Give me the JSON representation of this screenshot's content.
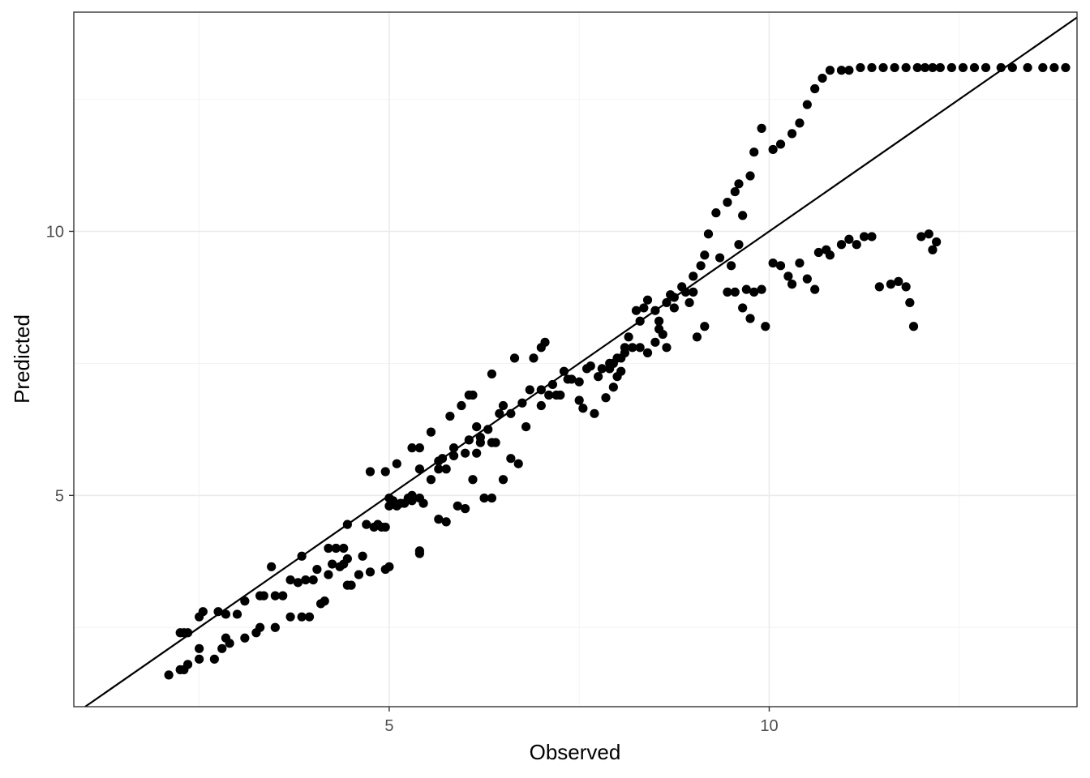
{
  "chart_data": {
    "type": "scatter",
    "title": "",
    "xlabel": "Observed",
    "ylabel": "Predicted",
    "xlim": [
      0.85,
      14.05
    ],
    "ylim": [
      1.0,
      14.15
    ],
    "x_ticks": [
      5,
      10
    ],
    "y_ticks": [
      5,
      10
    ],
    "grid": true,
    "reference_line": {
      "type": "identity",
      "slope": 1,
      "intercept": 0
    },
    "point_color": "#000000",
    "series": [
      {
        "points": [
          [
            2.1,
            1.6
          ],
          [
            2.25,
            1.7
          ],
          [
            2.3,
            1.7
          ],
          [
            2.35,
            1.8
          ],
          [
            2.5,
            1.9
          ],
          [
            2.5,
            2.1
          ],
          [
            2.7,
            1.9
          ],
          [
            2.8,
            2.1
          ],
          [
            2.85,
            2.3
          ],
          [
            2.9,
            2.2
          ],
          [
            3.1,
            2.3
          ],
          [
            3.25,
            2.4
          ],
          [
            3.3,
            2.5
          ],
          [
            3.5,
            2.5
          ],
          [
            3.7,
            2.7
          ],
          [
            3.85,
            2.7
          ],
          [
            3.95,
            2.7
          ],
          [
            4.1,
            2.95
          ],
          [
            4.15,
            3.0
          ],
          [
            4.45,
            3.3
          ],
          [
            4.5,
            3.3
          ],
          [
            4.6,
            3.5
          ],
          [
            4.75,
            3.55
          ],
          [
            4.95,
            3.6
          ],
          [
            5.0,
            3.65
          ],
          [
            5.4,
            3.9
          ],
          [
            5.4,
            3.95
          ],
          [
            2.25,
            2.4
          ],
          [
            2.3,
            2.4
          ],
          [
            2.35,
            2.4
          ],
          [
            2.5,
            2.7
          ],
          [
            2.55,
            2.8
          ],
          [
            2.75,
            2.8
          ],
          [
            2.85,
            2.75
          ],
          [
            3.0,
            2.75
          ],
          [
            3.1,
            3.0
          ],
          [
            3.3,
            3.1
          ],
          [
            3.35,
            3.1
          ],
          [
            3.5,
            3.1
          ],
          [
            3.6,
            3.1
          ],
          [
            3.7,
            3.4
          ],
          [
            3.8,
            3.35
          ],
          [
            3.9,
            3.4
          ],
          [
            4.0,
            3.4
          ],
          [
            4.05,
            3.6
          ],
          [
            4.2,
            3.5
          ],
          [
            4.25,
            3.7
          ],
          [
            4.35,
            3.65
          ],
          [
            4.4,
            3.7
          ],
          [
            4.45,
            3.8
          ],
          [
            4.65,
            3.85
          ],
          [
            4.8,
            4.4
          ],
          [
            4.9,
            4.4
          ],
          [
            5.0,
            4.8
          ],
          [
            5.1,
            4.8
          ],
          [
            5.2,
            4.85
          ],
          [
            5.3,
            4.9
          ],
          [
            5.45,
            4.85
          ],
          [
            5.65,
            4.55
          ],
          [
            5.75,
            4.5
          ],
          [
            5.9,
            4.8
          ],
          [
            6.0,
            4.75
          ],
          [
            6.25,
            4.95
          ],
          [
            6.35,
            4.95
          ],
          [
            3.45,
            3.65
          ],
          [
            3.85,
            3.85
          ],
          [
            4.2,
            4.0
          ],
          [
            4.3,
            4.0
          ],
          [
            4.4,
            4.0
          ],
          [
            4.45,
            4.45
          ],
          [
            4.7,
            4.45
          ],
          [
            4.85,
            4.45
          ],
          [
            4.95,
            4.4
          ],
          [
            5.0,
            4.95
          ],
          [
            5.05,
            4.9
          ],
          [
            5.15,
            4.85
          ],
          [
            5.25,
            4.95
          ],
          [
            5.3,
            5.0
          ],
          [
            5.4,
            4.95
          ],
          [
            5.4,
            5.5
          ],
          [
            5.55,
            5.3
          ],
          [
            5.65,
            5.5
          ],
          [
            5.75,
            5.5
          ],
          [
            5.85,
            5.9
          ],
          [
            6.0,
            5.8
          ],
          [
            6.1,
            5.3
          ],
          [
            6.15,
            5.8
          ],
          [
            6.2,
            6.0
          ],
          [
            6.35,
            6.0
          ],
          [
            6.4,
            6.0
          ],
          [
            6.5,
            5.3
          ],
          [
            6.6,
            5.7
          ],
          [
            6.7,
            5.6
          ],
          [
            4.75,
            5.45
          ],
          [
            4.95,
            5.45
          ],
          [
            5.1,
            5.6
          ],
          [
            5.3,
            5.9
          ],
          [
            5.4,
            5.9
          ],
          [
            5.55,
            6.2
          ],
          [
            5.7,
            5.7
          ],
          [
            5.8,
            6.5
          ],
          [
            5.95,
            6.7
          ],
          [
            6.05,
            6.9
          ],
          [
            6.1,
            6.9
          ],
          [
            6.15,
            6.3
          ],
          [
            6.35,
            7.3
          ],
          [
            6.5,
            6.7
          ],
          [
            6.65,
            7.6
          ],
          [
            6.8,
            6.3
          ],
          [
            6.9,
            7.6
          ],
          [
            7.0,
            7.8
          ],
          [
            7.05,
            7.9
          ],
          [
            7.0,
            6.7
          ],
          [
            7.1,
            6.9
          ],
          [
            7.2,
            6.9
          ],
          [
            7.25,
            6.9
          ],
          [
            7.35,
            7.2
          ],
          [
            7.4,
            7.2
          ],
          [
            7.5,
            6.8
          ],
          [
            7.6,
            7.4
          ],
          [
            7.65,
            7.45
          ],
          [
            7.8,
            7.4
          ],
          [
            7.9,
            7.5
          ],
          [
            7.95,
            7.5
          ],
          [
            8.05,
            7.6
          ],
          [
            8.1,
            7.7
          ],
          [
            8.15,
            8.0
          ],
          [
            8.25,
            8.5
          ],
          [
            8.3,
            8.3
          ],
          [
            8.35,
            8.55
          ],
          [
            8.4,
            8.7
          ],
          [
            8.5,
            8.5
          ],
          [
            8.55,
            8.3
          ],
          [
            8.6,
            8.05
          ],
          [
            8.65,
            7.8
          ],
          [
            8.7,
            8.8
          ],
          [
            8.75,
            8.75
          ],
          [
            8.85,
            8.95
          ],
          [
            8.95,
            8.65
          ],
          [
            9.0,
            8.85
          ],
          [
            9.05,
            8.0
          ],
          [
            9.15,
            8.2
          ],
          [
            7.9,
            7.4
          ],
          [
            8.0,
            7.6
          ],
          [
            8.1,
            7.8
          ],
          [
            8.2,
            7.8
          ],
          [
            8.3,
            7.8
          ],
          [
            8.4,
            7.7
          ],
          [
            8.5,
            7.9
          ],
          [
            8.55,
            8.15
          ],
          [
            8.65,
            8.65
          ],
          [
            8.75,
            8.55
          ],
          [
            8.9,
            8.85
          ],
          [
            9.0,
            9.15
          ],
          [
            9.1,
            9.35
          ],
          [
            9.15,
            9.55
          ],
          [
            9.35,
            9.5
          ],
          [
            9.5,
            9.35
          ],
          [
            9.6,
            9.75
          ],
          [
            9.45,
            8.85
          ],
          [
            9.55,
            8.85
          ],
          [
            9.65,
            8.55
          ],
          [
            9.7,
            8.9
          ],
          [
            9.75,
            8.35
          ],
          [
            9.8,
            8.85
          ],
          [
            9.9,
            8.9
          ],
          [
            9.95,
            8.2
          ],
          [
            10.05,
            9.4
          ],
          [
            10.15,
            9.35
          ],
          [
            10.25,
            9.15
          ],
          [
            10.3,
            9.0
          ],
          [
            10.4,
            9.4
          ],
          [
            10.5,
            9.1
          ],
          [
            10.6,
            8.9
          ],
          [
            10.65,
            9.6
          ],
          [
            10.75,
            9.65
          ],
          [
            10.8,
            9.55
          ],
          [
            10.95,
            9.75
          ],
          [
            11.05,
            9.85
          ],
          [
            11.15,
            9.75
          ],
          [
            11.25,
            9.9
          ],
          [
            11.35,
            9.9
          ],
          [
            11.45,
            8.95
          ],
          [
            11.6,
            9.0
          ],
          [
            11.7,
            9.05
          ],
          [
            11.8,
            8.95
          ],
          [
            11.85,
            8.65
          ],
          [
            11.9,
            8.2
          ],
          [
            12.0,
            9.9
          ],
          [
            12.1,
            9.95
          ],
          [
            12.15,
            9.65
          ],
          [
            12.2,
            9.8
          ],
          [
            9.2,
            9.95
          ],
          [
            9.3,
            10.35
          ],
          [
            9.45,
            10.55
          ],
          [
            9.55,
            10.75
          ],
          [
            9.6,
            10.9
          ],
          [
            9.65,
            10.3
          ],
          [
            9.75,
            11.05
          ],
          [
            9.8,
            11.5
          ],
          [
            9.9,
            11.95
          ],
          [
            10.05,
            11.55
          ],
          [
            10.15,
            11.65
          ],
          [
            10.3,
            11.85
          ],
          [
            10.4,
            12.05
          ],
          [
            10.5,
            12.4
          ],
          [
            10.6,
            12.7
          ],
          [
            10.7,
            12.9
          ],
          [
            10.8,
            13.05
          ],
          [
            10.95,
            13.05
          ],
          [
            11.05,
            13.05
          ],
          [
            11.2,
            13.1
          ],
          [
            11.35,
            13.1
          ],
          [
            11.5,
            13.1
          ],
          [
            11.65,
            13.1
          ],
          [
            11.8,
            13.1
          ],
          [
            11.95,
            13.1
          ],
          [
            12.05,
            13.1
          ],
          [
            12.15,
            13.1
          ],
          [
            12.25,
            13.1
          ],
          [
            12.4,
            13.1
          ],
          [
            12.55,
            13.1
          ],
          [
            12.7,
            13.1
          ],
          [
            12.85,
            13.1
          ],
          [
            13.05,
            13.1
          ],
          [
            13.2,
            13.1
          ],
          [
            13.4,
            13.1
          ],
          [
            13.6,
            13.1
          ],
          [
            13.75,
            13.1
          ],
          [
            13.9,
            13.1
          ],
          [
            7.55,
            6.65
          ],
          [
            7.7,
            6.55
          ],
          [
            7.85,
            6.85
          ],
          [
            7.95,
            7.05
          ],
          [
            8.0,
            7.25
          ],
          [
            8.05,
            7.35
          ],
          [
            7.75,
            7.25
          ],
          [
            7.5,
            7.15
          ],
          [
            7.3,
            7.35
          ],
          [
            7.15,
            7.1
          ],
          [
            7.0,
            7.0
          ],
          [
            6.85,
            7.0
          ],
          [
            6.75,
            6.75
          ],
          [
            6.6,
            6.55
          ],
          [
            6.45,
            6.55
          ],
          [
            6.3,
            6.25
          ],
          [
            6.2,
            6.1
          ],
          [
            6.05,
            6.05
          ],
          [
            5.85,
            5.75
          ],
          [
            5.65,
            5.65
          ]
        ]
      }
    ]
  }
}
